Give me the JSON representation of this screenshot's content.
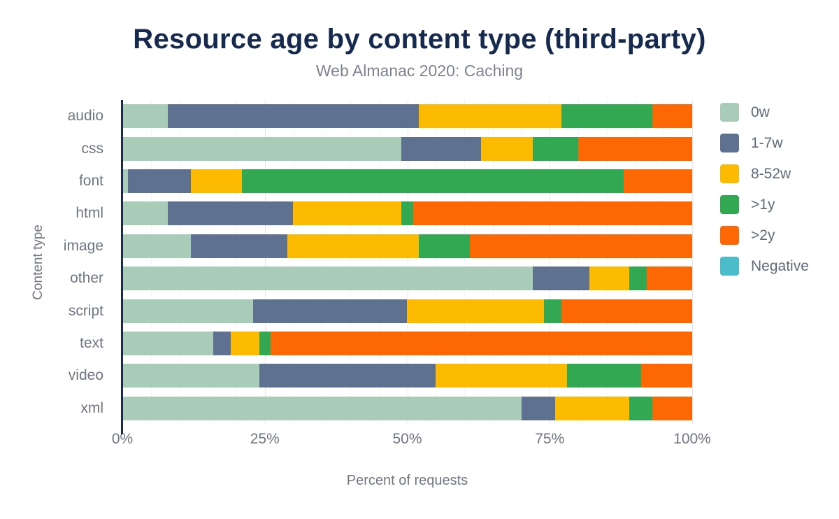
{
  "chart": {
    "title": "Resource age by content type (third-party)",
    "subtitle": "Web Almanac 2020: Caching",
    "xlabel": "Percent of requests",
    "ylabel": "Content type"
  },
  "chart_data": {
    "type": "bar",
    "stacked": true,
    "orientation": "horizontal",
    "title": "Resource age by content type (third-party)",
    "subtitle": "Web Almanac 2020: Caching",
    "xlabel": "Percent of requests",
    "ylabel": "Content type",
    "xlim": [
      0,
      100
    ],
    "x_ticks": [
      0,
      25,
      50,
      75,
      100
    ],
    "x_tick_labels": [
      "0%",
      "25%",
      "50%",
      "75%",
      "100%"
    ],
    "grid": {
      "minor_step_percent": 5,
      "major_ticks": [
        25,
        50,
        75,
        100
      ]
    },
    "legend_position": "right",
    "categories": [
      "audio",
      "css",
      "font",
      "html",
      "image",
      "other",
      "script",
      "text",
      "video",
      "xml"
    ],
    "series": [
      {
        "name": "0w",
        "color": "#a9ccb8",
        "values": [
          8,
          49,
          1,
          8,
          12,
          72,
          23,
          16,
          24,
          70
        ]
      },
      {
        "name": "1-7w",
        "color": "#5e7191",
        "values": [
          44,
          14,
          11,
          22,
          17,
          10,
          27,
          3,
          31,
          6
        ]
      },
      {
        "name": "8-52w",
        "color": "#fcbb00",
        "values": [
          25,
          9,
          9,
          19,
          23,
          7,
          24,
          5,
          23,
          13
        ]
      },
      {
        "name": ">1y",
        "color": "#31a851",
        "values": [
          16,
          8,
          67,
          2,
          9,
          3,
          3,
          2,
          13,
          4
        ]
      },
      {
        "name": ">2y",
        "color": "#fd6804",
        "values": [
          7,
          20,
          12,
          49,
          39,
          8,
          23,
          74,
          9,
          7
        ]
      },
      {
        "name": "Negative",
        "color": "#4bbcc9",
        "values": [
          0,
          0,
          0,
          0,
          0,
          0,
          0,
          0,
          0,
          0
        ]
      }
    ],
    "style": {
      "title_color": "#152a4e",
      "subtitle_color": "#7d848d",
      "axis_text_color": "#6e7680",
      "axis_line_color": "#1c2b4a",
      "background": "#ffffff"
    }
  }
}
